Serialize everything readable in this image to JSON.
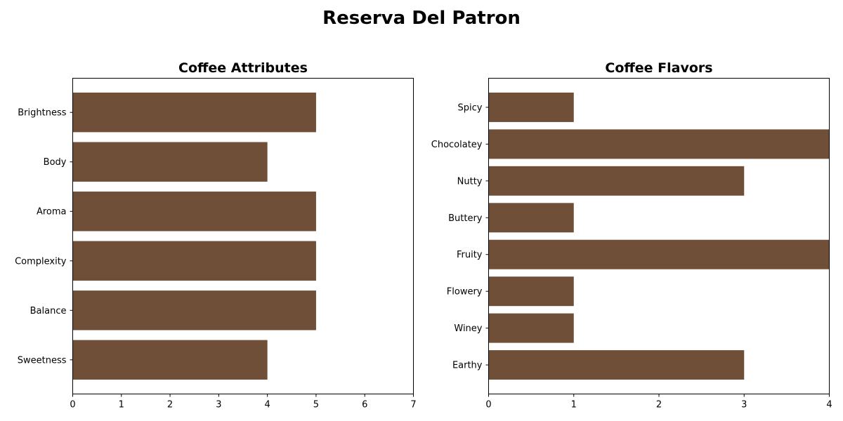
{
  "figure_title": "Reserva Del Patron",
  "colors": {
    "bar": "#6f4f37",
    "axis": "#000000",
    "background": "#ffffff"
  },
  "chart_data": [
    {
      "type": "bar",
      "orientation": "horizontal",
      "title": "Coffee Attributes",
      "categories": [
        "Brightness",
        "Body",
        "Aroma",
        "Complexity",
        "Balance",
        "Sweetness"
      ],
      "values": [
        5,
        4,
        5,
        5,
        5,
        4
      ],
      "xlim": [
        0,
        7
      ],
      "xticks": [
        0,
        1,
        2,
        3,
        4,
        5,
        6,
        7
      ],
      "xlabel": "",
      "ylabel": "",
      "grid": false
    },
    {
      "type": "bar",
      "orientation": "horizontal",
      "title": "Coffee Flavors",
      "categories": [
        "Spicy",
        "Chocolatey",
        "Nutty",
        "Buttery",
        "Fruity",
        "Flowery",
        "Winey",
        "Earthy"
      ],
      "values": [
        1,
        4,
        3,
        1,
        4,
        1,
        1,
        3
      ],
      "xlim": [
        0,
        4
      ],
      "xticks": [
        0,
        1,
        2,
        3,
        4
      ],
      "xlabel": "",
      "ylabel": "",
      "grid": false
    }
  ]
}
